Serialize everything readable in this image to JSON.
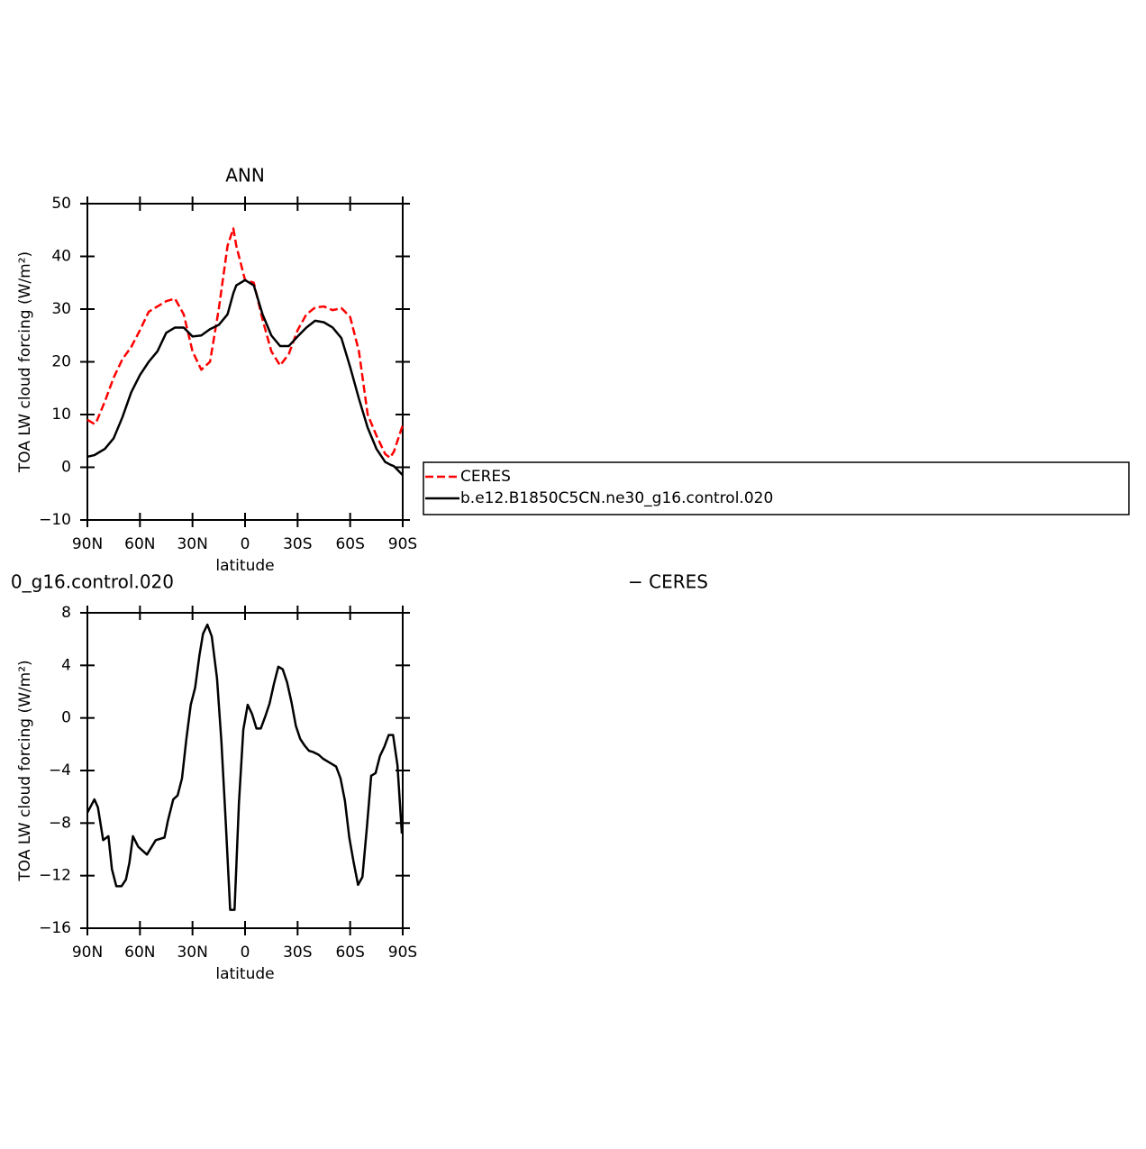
{
  "chart_data": [
    {
      "type": "line",
      "title": "ANN",
      "xlabel": "latitude",
      "ylabel": "TOA LW cloud forcing (W/m²)",
      "xlim": [
        90,
        -90
      ],
      "ylim": [
        -10,
        50
      ],
      "xticks": [
        {
          "value": 90,
          "label": "90N"
        },
        {
          "value": 60,
          "label": "60N"
        },
        {
          "value": 30,
          "label": "30N"
        },
        0,
        {
          "value": -30,
          "label": "30S"
        },
        {
          "value": -60,
          "label": "60S"
        },
        {
          "value": -90,
          "label": "90S"
        }
      ],
      "yticks": [
        {
          "value": -10,
          "label": "−10"
        },
        0,
        10,
        20,
        30,
        40,
        50
      ],
      "legend": "right",
      "x": [
        90,
        86,
        85,
        80,
        75,
        70,
        65,
        60,
        55,
        50,
        45,
        40,
        35,
        30,
        25,
        20,
        15,
        10,
        6.7,
        5,
        0,
        -5,
        -10,
        -15,
        -20,
        -25,
        -30,
        -35,
        -40,
        -45,
        -50,
        -55,
        -60,
        -65,
        -70,
        -75,
        -80,
        -82.8,
        -85,
        -90
      ],
      "series": [
        {
          "name": "CERES",
          "color": "#ff0000",
          "dashed": true,
          "values": [
            9,
            8.2,
            8.5,
            12.5,
            17,
            20.5,
            22.8,
            26,
            29.5,
            30.5,
            31.5,
            32,
            29,
            22,
            18.5,
            20,
            30,
            42,
            45.3,
            42,
            35.5,
            35,
            28,
            22,
            19.3,
            21.5,
            26,
            29,
            30.3,
            30.5,
            29.8,
            30.2,
            28.5,
            22,
            10,
            6,
            2.5,
            1.8,
            3,
            8
          ]
        },
        {
          "name": "b.e12.B1850C5CN.ne30_g16.control.020",
          "color": "#000000",
          "dashed": false,
          "values": [
            2,
            2.3,
            2.5,
            3.5,
            5.5,
            9.5,
            14.2,
            17.5,
            20,
            22,
            25.5,
            26.5,
            26.5,
            24.8,
            25,
            26.2,
            27,
            29,
            33,
            34.5,
            35.5,
            34.5,
            29,
            25,
            23,
            23,
            24.8,
            26.5,
            27.8,
            27.5,
            26.5,
            24.5,
            19,
            13,
            7.5,
            3.5,
            1,
            0.5,
            0.2,
            -1.5
          ]
        }
      ]
    },
    {
      "type": "line",
      "title": [
        "0_g16.control.020",
        "− CERES"
      ],
      "xlabel": "latitude",
      "ylabel": "TOA LW cloud forcing (W/m²)",
      "xlim": [
        90,
        -90
      ],
      "ylim": [
        -16,
        8
      ],
      "xticks": [
        {
          "value": 90,
          "label": "90N"
        },
        {
          "value": 60,
          "label": "60N"
        },
        {
          "value": 30,
          "label": "30N"
        },
        0,
        {
          "value": -30,
          "label": "30S"
        },
        {
          "value": -60,
          "label": "60S"
        },
        {
          "value": -90,
          "label": "90S"
        }
      ],
      "yticks": [
        {
          "value": -16,
          "label": "−16"
        },
        {
          "value": -12,
          "label": "−12"
        },
        {
          "value": -8,
          "label": "−8"
        },
        {
          "value": -4,
          "label": "−4"
        },
        0,
        4,
        8
      ],
      "x": [
        90,
        86,
        84,
        81,
        78,
        76,
        73.5,
        70.5,
        68,
        66,
        64,
        61,
        56,
        51,
        46,
        44,
        41,
        38.5,
        36,
        33.5,
        31,
        28.5,
        26,
        24,
        21.5,
        19,
        16,
        13.5,
        11,
        8.5,
        6,
        3.5,
        1,
        -1.5,
        -4,
        -6.5,
        -9,
        -11.5,
        -14,
        -16.5,
        -19,
        -21.5,
        -24,
        -26.5,
        -29,
        -31.5,
        -34,
        -36.5,
        -39,
        -42,
        -44.5,
        -47,
        -49.5,
        -52,
        -54.5,
        -57,
        -59.5,
        -62,
        -64.5,
        -67,
        -69.5,
        -72,
        -74.5,
        -77,
        -79.5,
        -82,
        -84.5,
        -87,
        -89.5
      ],
      "color": "#000000",
      "values": [
        -7.2,
        -6.2,
        -6.8,
        -9.3,
        -9.0,
        -11.5,
        -12.8,
        -12.8,
        -12.3,
        -11,
        -9.0,
        -9.8,
        -10.4,
        -9.3,
        -9.1,
        -7.8,
        -6.2,
        -5.9,
        -4.6,
        -1.6,
        1.0,
        2.3,
        4.8,
        6.4,
        7.1,
        6.2,
        3.0,
        -1.8,
        -8.0,
        -14.6,
        -14.6,
        -6.5,
        -0.9,
        1.0,
        0.3,
        -0.8,
        -0.8,
        0.1,
        1.1,
        2.6,
        3.9,
        3.7,
        2.7,
        1.2,
        -0.6,
        -1.6,
        -2.1,
        -2.5,
        -2.6,
        -2.8,
        -3.1,
        -3.3,
        -3.5,
        -3.7,
        -4.6,
        -6.3,
        -9.1,
        -11,
        -12.7,
        -12.1,
        -8.4,
        -4.4,
        -4.2,
        -2.9,
        -2.2,
        -1.3,
        -1.3,
        -3.6,
        -8.8
      ]
    }
  ]
}
